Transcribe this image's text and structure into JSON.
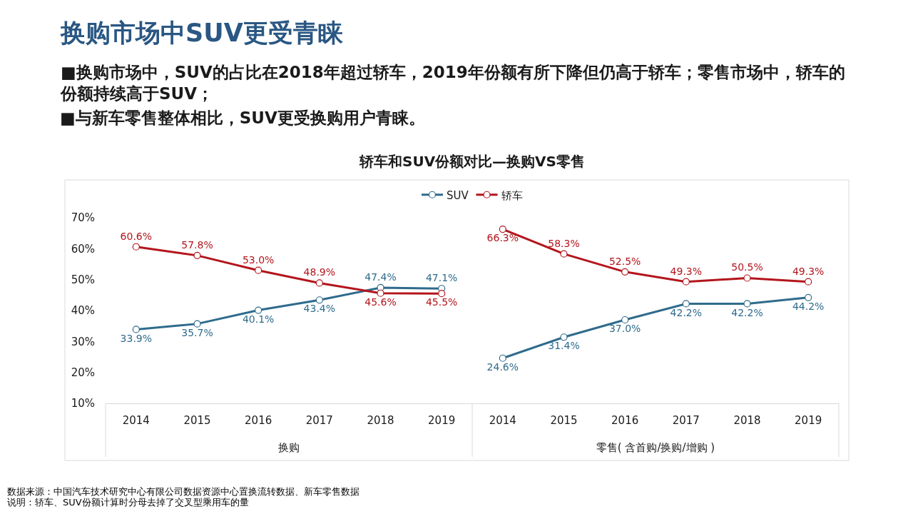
{
  "chart_data": [
    {
      "type": "line",
      "title": "轿车和SUV份额对比—换购VS零售",
      "xlabel": "换购",
      "categories": [
        "2014",
        "2015",
        "2016",
        "2017",
        "2018",
        "2019"
      ],
      "series": [
        {
          "name": "SUV",
          "color": "#2f6b8c",
          "values": [
            33.9,
            35.7,
            40.1,
            43.4,
            47.4,
            47.1
          ],
          "value_labels": [
            "33.9%",
            "35.7%",
            "40.1%",
            "43.4%",
            "47.4%",
            "47.1%"
          ]
        },
        {
          "name": "轿车",
          "color": "#b3151c",
          "values": [
            60.6,
            57.8,
            53.0,
            48.9,
            45.6,
            45.5
          ],
          "value_labels": [
            "60.6%",
            "57.8%",
            "53.0%",
            "48.9%",
            "45.6%",
            "45.5%"
          ]
        }
      ],
      "ylim": [
        10,
        70
      ],
      "yticks": [
        {
          "value": 10,
          "label": "10%"
        },
        {
          "value": 20,
          "label": "20%"
        },
        {
          "value": 30,
          "label": "30%"
        },
        {
          "value": 40,
          "label": "40%"
        },
        {
          "value": 50,
          "label": "50%"
        },
        {
          "value": 60,
          "label": "60%"
        },
        {
          "value": 70,
          "label": "70%"
        }
      ],
      "marker": "circle",
      "legend": "top",
      "annotations": [
        "换购市场中SUV更受青睐",
        "■换购市场中，SUV的占比在2018年超过轿车，2019年份额有所下降但仍高于轿车；零售市场中，轿车的份额持续高于SUV；",
        "■与新车零售整体相比，SUV更受换购用户青睐。",
        "数据来源：中国汽车技术研究中心有限公司数据资源中心置换流转数据、新车零售数据",
        "说明：轿车、SUV份额计算时分母去掉了交叉型乘用车的量"
      ]
    },
    {
      "type": "line",
      "xlabel": "零售( 含首购/换购/增购 )",
      "categories": [
        "2014",
        "2015",
        "2016",
        "2017",
        "2018",
        "2019"
      ],
      "series": [
        {
          "color": "#2f6b8c",
          "values": [
            24.6,
            31.4,
            37.0,
            42.2,
            42.2,
            44.2
          ],
          "value_labels": [
            "24.6%",
            "31.4%",
            "37.0%",
            "42.2%",
            "42.2%",
            "44.2%"
          ]
        },
        {
          "color": "#b3151c",
          "values": [
            66.3,
            58.3,
            52.5,
            49.3,
            50.5,
            49.3
          ],
          "value_labels": [
            "66.3%",
            "58.3%",
            "52.5%",
            "49.3%",
            "50.5%",
            "49.3%"
          ]
        }
      ],
      "ylim": [
        10,
        70
      ],
      "tick_labels": "x",
      "marker": "circle"
    }
  ]
}
